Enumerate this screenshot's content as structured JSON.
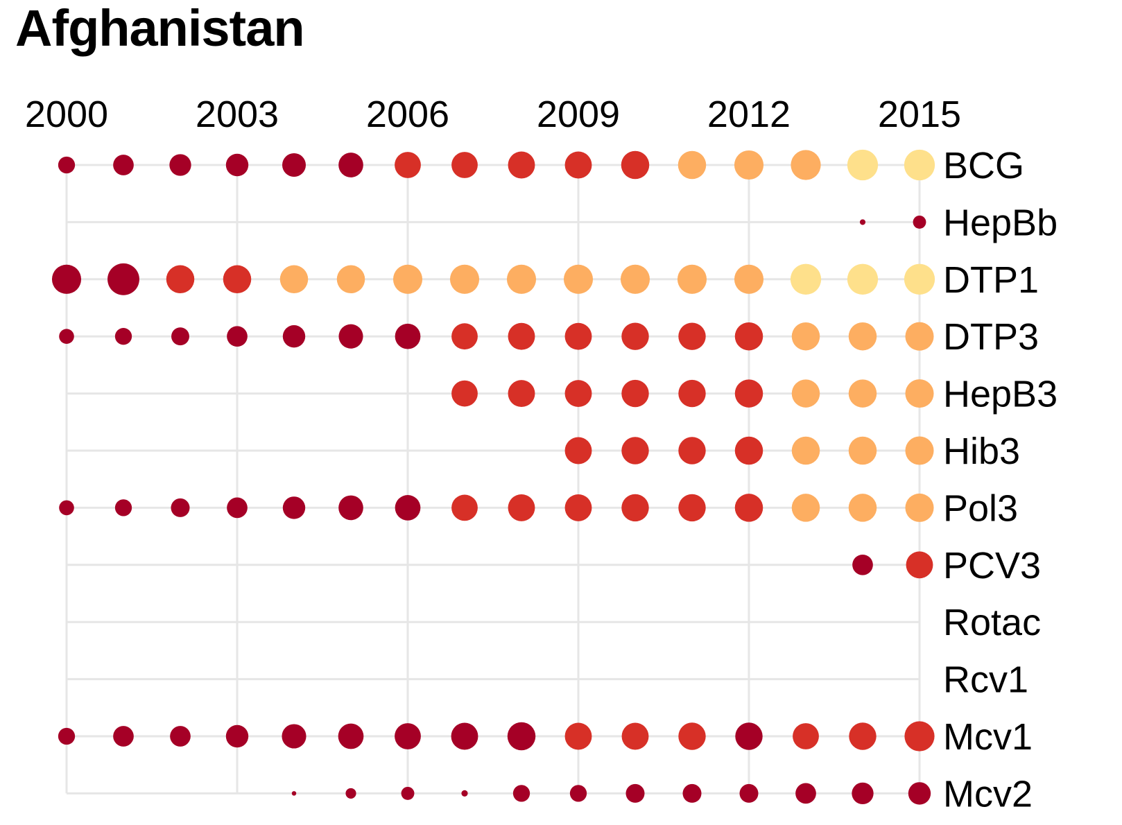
{
  "title": "Afghanistan",
  "chart_data": {
    "type": "scatter",
    "title": "Afghanistan",
    "x_ticks": [
      2000,
      2003,
      2006,
      2009,
      2012,
      2015
    ],
    "x": [
      2000,
      2001,
      2002,
      2003,
      2004,
      2005,
      2006,
      2007,
      2008,
      2009,
      2010,
      2011,
      2012,
      2013,
      2014,
      2015
    ],
    "xlim": [
      2000,
      2015
    ],
    "grid": true,
    "colors": {
      "dark": "#a50026",
      "red": "#d73027",
      "orange": "#fdae61",
      "yellow": "#fee08b",
      "grid": "#e6e6e6"
    },
    "series": [
      {
        "name": "BCG",
        "start": 2000,
        "sizes": [
          0.45,
          0.55,
          0.58,
          0.6,
          0.63,
          0.66,
          0.7,
          0.7,
          0.72,
          0.72,
          0.75,
          0.75,
          0.78,
          0.8,
          0.82,
          0.82
        ],
        "colors": [
          "dark",
          "dark",
          "dark",
          "dark",
          "dark",
          "dark",
          "red",
          "red",
          "red",
          "red",
          "red",
          "orange",
          "orange",
          "orange",
          "yellow",
          "yellow"
        ]
      },
      {
        "name": "HepBb",
        "start": 2014,
        "sizes": [
          0.15,
          0.35
        ],
        "colors": [
          "dark",
          "dark"
        ]
      },
      {
        "name": "DTP1",
        "start": 2000,
        "sizes": [
          0.78,
          0.85,
          0.75,
          0.75,
          0.75,
          0.75,
          0.78,
          0.78,
          0.78,
          0.78,
          0.78,
          0.78,
          0.78,
          0.82,
          0.82,
          0.82
        ],
        "colors": [
          "dark",
          "dark",
          "red",
          "red",
          "orange",
          "orange",
          "orange",
          "orange",
          "orange",
          "orange",
          "orange",
          "orange",
          "orange",
          "yellow",
          "yellow",
          "yellow"
        ]
      },
      {
        "name": "DTP3",
        "start": 2000,
        "sizes": [
          0.4,
          0.45,
          0.48,
          0.55,
          0.6,
          0.65,
          0.68,
          0.7,
          0.72,
          0.72,
          0.73,
          0.73,
          0.75,
          0.75,
          0.75,
          0.76
        ],
        "colors": [
          "dark",
          "dark",
          "dark",
          "dark",
          "dark",
          "dark",
          "dark",
          "red",
          "red",
          "red",
          "red",
          "red",
          "red",
          "orange",
          "orange",
          "orange"
        ]
      },
      {
        "name": "HepB3",
        "start": 2007,
        "sizes": [
          0.7,
          0.72,
          0.72,
          0.73,
          0.73,
          0.75,
          0.75,
          0.75,
          0.76
        ],
        "colors": [
          "red",
          "red",
          "red",
          "red",
          "red",
          "red",
          "orange",
          "orange",
          "orange"
        ]
      },
      {
        "name": "Hib3",
        "start": 2009,
        "sizes": [
          0.72,
          0.73,
          0.73,
          0.75,
          0.75,
          0.75,
          0.76
        ],
        "colors": [
          "red",
          "red",
          "red",
          "red",
          "orange",
          "orange",
          "orange"
        ]
      },
      {
        "name": "Pol3",
        "start": 2000,
        "sizes": [
          0.4,
          0.45,
          0.5,
          0.55,
          0.6,
          0.66,
          0.68,
          0.7,
          0.72,
          0.72,
          0.73,
          0.73,
          0.75,
          0.75,
          0.75,
          0.76
        ],
        "colors": [
          "dark",
          "dark",
          "dark",
          "dark",
          "dark",
          "dark",
          "dark",
          "red",
          "red",
          "red",
          "red",
          "red",
          "red",
          "orange",
          "orange",
          "orange"
        ]
      },
      {
        "name": "PCV3",
        "start": 2014,
        "sizes": [
          0.55,
          0.72
        ],
        "colors": [
          "dark",
          "red"
        ]
      },
      {
        "name": "Rotac",
        "start": null,
        "sizes": [],
        "colors": []
      },
      {
        "name": "Rcv1",
        "start": null,
        "sizes": [],
        "colors": []
      },
      {
        "name": "Mcv1",
        "start": 2000,
        "sizes": [
          0.45,
          0.55,
          0.55,
          0.6,
          0.65,
          0.68,
          0.7,
          0.72,
          0.75,
          0.72,
          0.72,
          0.73,
          0.73,
          0.7,
          0.73,
          0.8
        ],
        "colors": [
          "dark",
          "dark",
          "dark",
          "dark",
          "dark",
          "dark",
          "dark",
          "dark",
          "dark",
          "red",
          "red",
          "red",
          "dark",
          "red",
          "red",
          "red"
        ]
      },
      {
        "name": "Mcv2",
        "start": 2004,
        "sizes": [
          0.12,
          0.28,
          0.35,
          0.17,
          0.45,
          0.45,
          0.5,
          0.5,
          0.5,
          0.55,
          0.58,
          0.6
        ],
        "colors": [
          "dark",
          "dark",
          "dark",
          "dark",
          "dark",
          "dark",
          "dark",
          "dark",
          "dark",
          "dark",
          "dark",
          "dark"
        ]
      }
    ]
  }
}
